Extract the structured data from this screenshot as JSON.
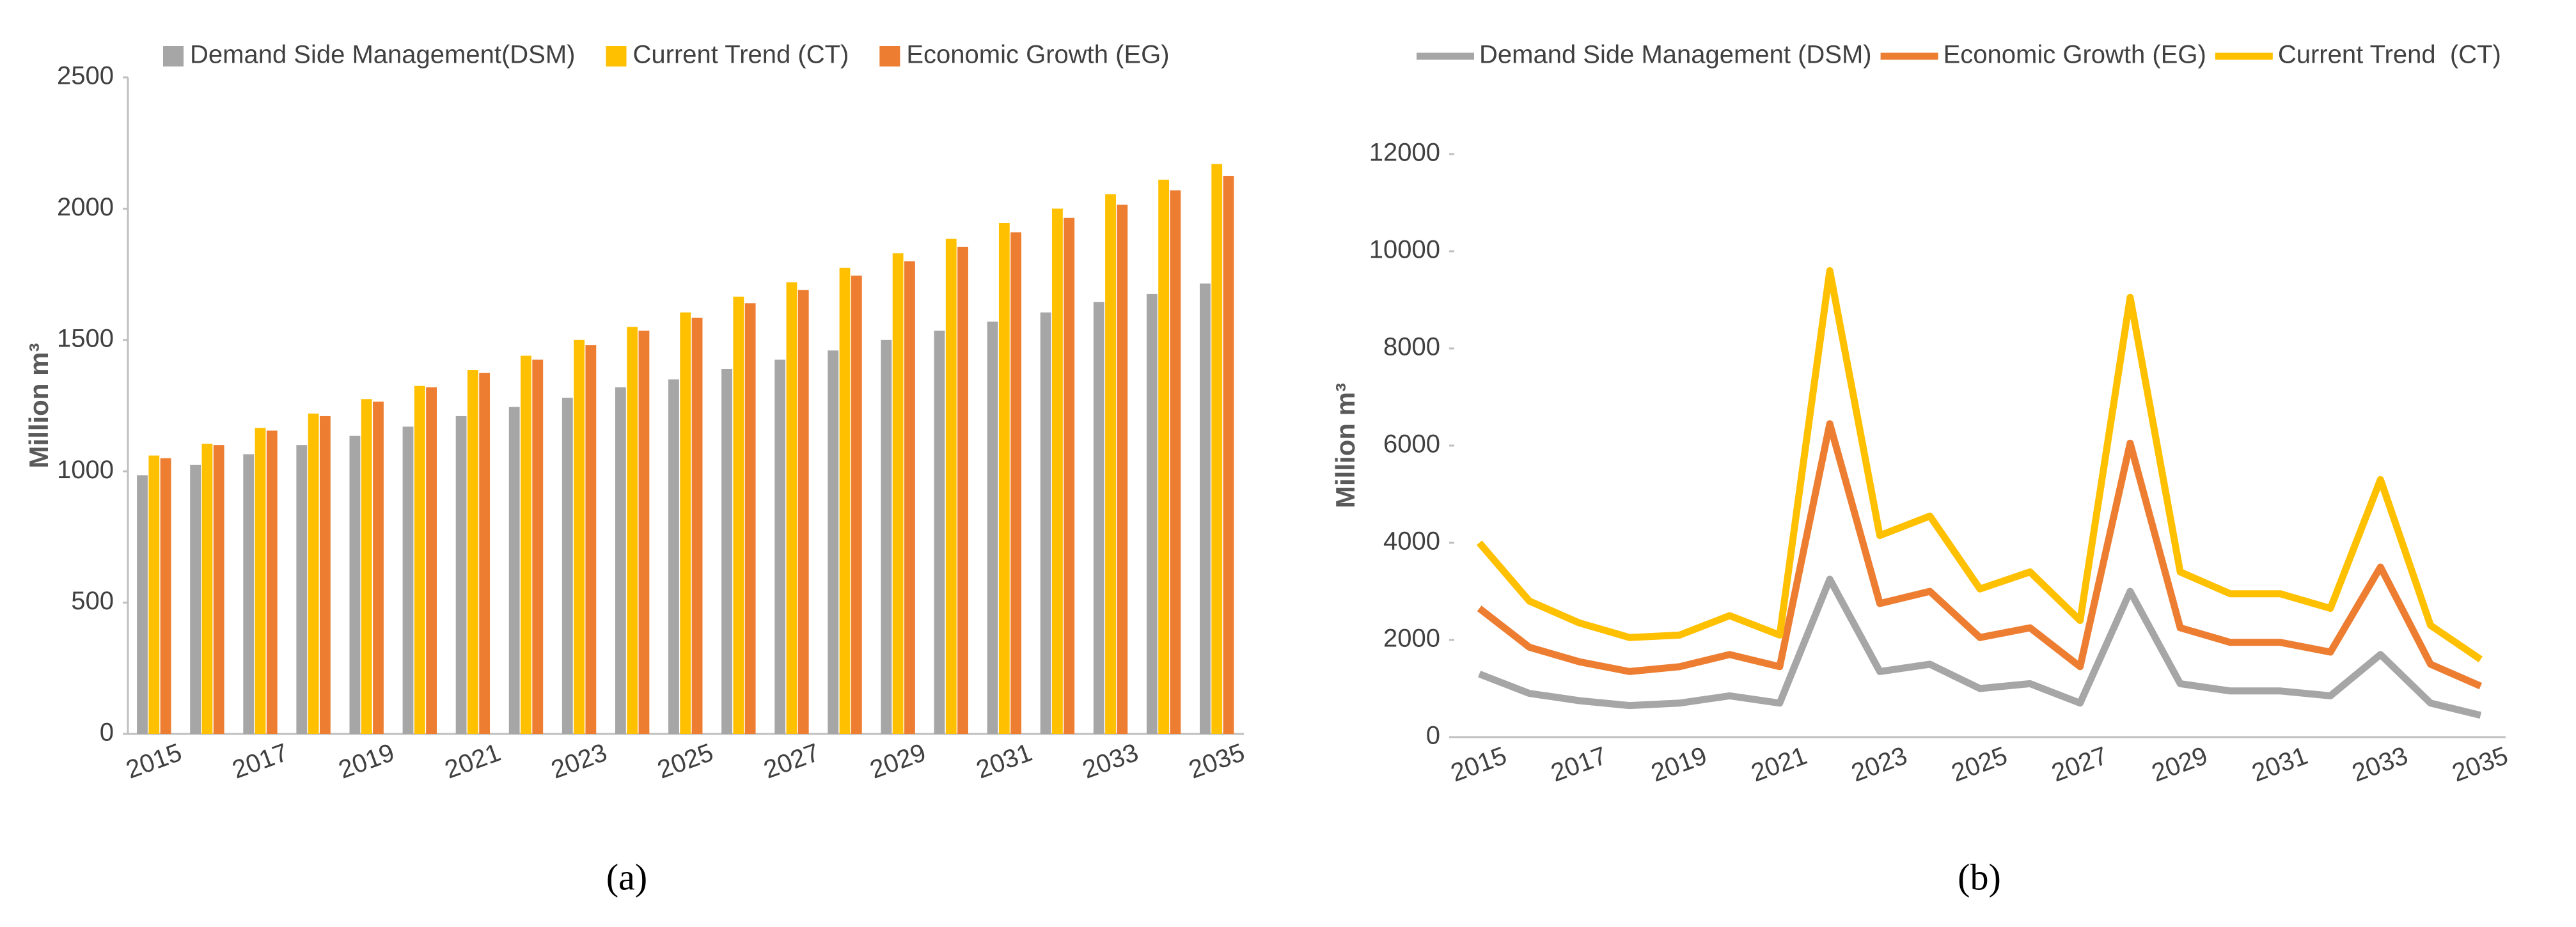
{
  "chart_data": [
    {
      "type": "bar",
      "caption": "(a)",
      "y_label": "Million m³",
      "categories": [
        "2015",
        null,
        "2017",
        null,
        "2019",
        null,
        "2021",
        null,
        "2023",
        null,
        "2025",
        null,
        "2027",
        null,
        "2029",
        null,
        "2031",
        null,
        "2033",
        null,
        "2035"
      ],
      "series": [
        {
          "name": "Demand Side Management(DSM)",
          "color": "#a6a6a6",
          "values": [
            985,
            1025,
            1065,
            1100,
            1135,
            1170,
            1210,
            1245,
            1280,
            1320,
            1350,
            1390,
            1425,
            1460,
            1500,
            1535,
            1570,
            1605,
            1645,
            1675,
            1715
          ]
        },
        {
          "name": "Current Trend (CT)",
          "color": "#ffc000",
          "values": [
            1060,
            1105,
            1165,
            1220,
            1275,
            1325,
            1385,
            1440,
            1500,
            1550,
            1605,
            1665,
            1720,
            1775,
            1830,
            1885,
            1945,
            2000,
            2055,
            2110,
            2170
          ]
        },
        {
          "name": "Economic Growth (EG)",
          "color": "#ed7d31",
          "values": [
            1050,
            1100,
            1155,
            1210,
            1265,
            1320,
            1375,
            1425,
            1480,
            1535,
            1585,
            1640,
            1690,
            1745,
            1800,
            1855,
            1910,
            1965,
            2015,
            2070,
            2125
          ]
        }
      ],
      "ylim": [
        0,
        2500
      ],
      "yticks": [
        0,
        500,
        1000,
        1500,
        2000,
        2500
      ],
      "grid": false
    },
    {
      "type": "line",
      "caption": "(b)",
      "y_label": "Million m³",
      "categories": [
        "2015",
        null,
        "2017",
        null,
        "2019",
        null,
        "2021",
        null,
        "2023",
        null,
        "2025",
        null,
        "2027",
        null,
        "2029",
        null,
        "2031",
        null,
        "2033",
        null,
        "2035"
      ],
      "series": [
        {
          "name": "Demand Side Management (DSM)",
          "color": "#a6a6a6",
          "values": [
            1300,
            900,
            750,
            650,
            700,
            850,
            700,
            3250,
            1350,
            1500,
            1000,
            1100,
            700,
            3000,
            1100,
            950,
            950,
            850,
            1700,
            700,
            450
          ]
        },
        {
          "name": "Economic Growth (EG)",
          "color": "#ed7d31",
          "values": [
            2650,
            1850,
            1550,
            1350,
            1450,
            1700,
            1450,
            6450,
            2750,
            3000,
            2050,
            2250,
            1450,
            6050,
            2250,
            1950,
            1950,
            1750,
            3500,
            1500,
            1050
          ]
        },
        {
          "name": "Current Trend  (CT)",
          "color": "#ffc000",
          "values": [
            4000,
            2800,
            2350,
            2050,
            2100,
            2500,
            2100,
            9600,
            4150,
            4550,
            3050,
            3400,
            2400,
            9050,
            3400,
            2950,
            2950,
            2650,
            5300,
            2300,
            1600
          ]
        }
      ],
      "ylim": [
        0,
        12000
      ],
      "yticks": [
        0,
        2000,
        4000,
        6000,
        8000,
        10000,
        12000
      ],
      "grid": false
    }
  ]
}
